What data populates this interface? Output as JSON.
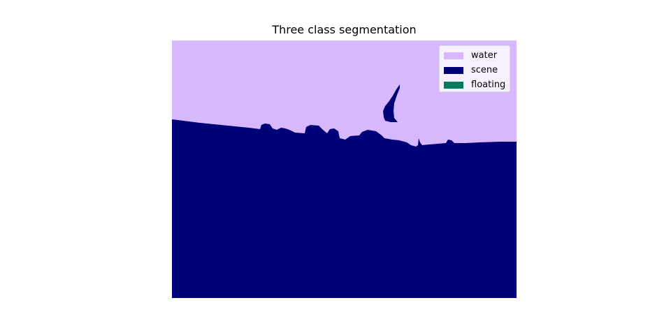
{
  "figure": {
    "title": "Three class segmentation"
  },
  "legend": {
    "placement": "top-right",
    "items": [
      {
        "label": "water",
        "color": "#d8b8fc"
      },
      {
        "label": "scene",
        "color": "#000078"
      },
      {
        "label": "floating",
        "color": "#007c5a"
      }
    ]
  },
  "colors": {
    "water": "#d8b8fc",
    "scene": "#000078",
    "background": "#ffffff"
  }
}
